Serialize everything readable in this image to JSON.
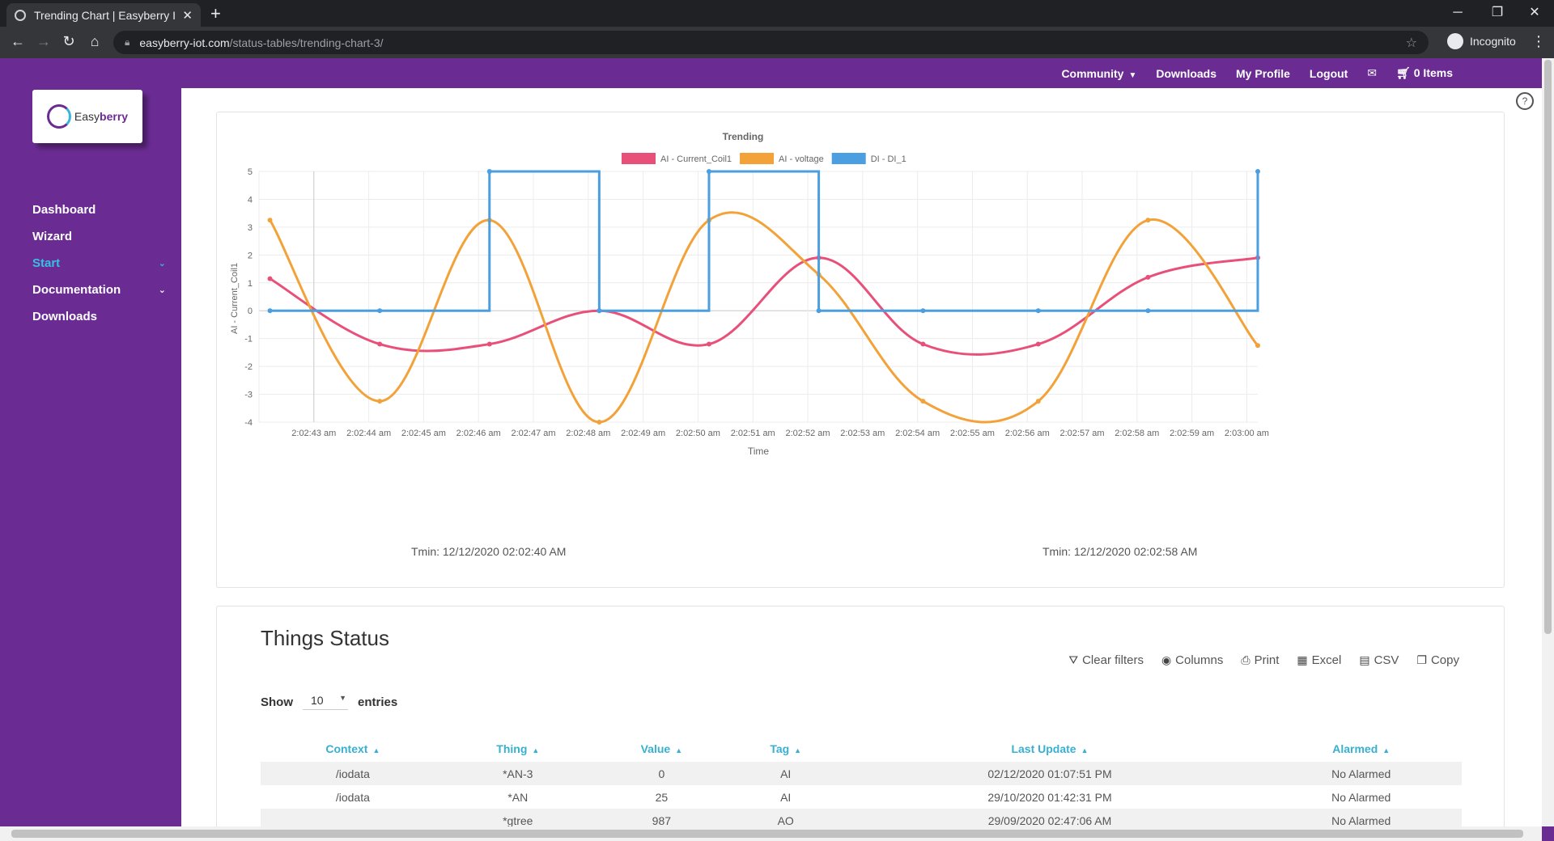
{
  "browser": {
    "tab_title": "Trending Chart | Easyberry IoT",
    "url_host": "easyberry-iot.com",
    "url_path": "/status-tables/trending-chart-3/",
    "profile": "Incognito"
  },
  "topnav": {
    "community": "Community",
    "downloads": "Downloads",
    "my_profile": "My Profile",
    "logout": "Logout",
    "cart": "0 Items"
  },
  "logo": {
    "part1": "Easy",
    "part2": "berry"
  },
  "sidebar": {
    "items": [
      {
        "label": "Dashboard"
      },
      {
        "label": "Wizard"
      },
      {
        "label": "Start"
      },
      {
        "label": "Documentation"
      },
      {
        "label": "Downloads"
      }
    ]
  },
  "chart_data": {
    "type": "line",
    "title": "Trending",
    "xlabel": "Time",
    "ylabel": "AI - Current_Coil1",
    "ylim": [
      -4,
      5
    ],
    "yticks": [
      5,
      4,
      3,
      2,
      1,
      0,
      -1,
      -2,
      -3,
      -4
    ],
    "x_tick_labels": [
      "2:02:43 am",
      "2:02:44 am",
      "2:02:45 am",
      "2:02:46 am",
      "2:02:47 am",
      "2:02:48 am",
      "2:02:49 am",
      "2:02:50 am",
      "2:02:51 am",
      "2:02:52 am",
      "2:02:53 am",
      "2:02:54 am",
      "2:02:55 am",
      "2:02:56 am",
      "2:02:57 am",
      "2:02:58 am",
      "2:02:59 am",
      "2:03:00 am"
    ],
    "grid": true,
    "legend_position": "top-center",
    "series": [
      {
        "name": "AI - Current_Coil1",
        "color": "#e8507a",
        "smooth": true,
        "x": [
          42.2,
          44.2,
          46.2,
          48.2,
          50.2,
          52.2,
          54.1,
          56.2,
          58.2,
          60.2
        ],
        "y": [
          1.15,
          -1.2,
          -1.2,
          0.0,
          -1.2,
          1.9,
          -1.2,
          -1.2,
          1.2,
          1.9
        ]
      },
      {
        "name": "AI - voltage",
        "color": "#f2a238",
        "smooth": true,
        "x": [
          42.2,
          44.2,
          46.2,
          48.2,
          50.2,
          52.2,
          54.1,
          56.2,
          58.2,
          60.2
        ],
        "y": [
          3.25,
          -3.25,
          3.25,
          -4.0,
          3.25,
          1.3,
          -3.25,
          -3.25,
          3.25,
          -1.25
        ]
      },
      {
        "name": "DI - DI_1",
        "color": "#4b9fe0",
        "step": true,
        "x": [
          42.2,
          44.2,
          46.2,
          48.2,
          50.2,
          52.2,
          54.1,
          56.2,
          58.2,
          60.2
        ],
        "y": [
          0,
          0,
          5,
          0,
          5,
          0,
          0,
          0,
          0,
          5
        ]
      }
    ]
  },
  "tmin_labels": {
    "left": "Tmin: 12/12/2020 02:02:40 AM",
    "right": "Tmin: 12/12/2020 02:02:58 AM"
  },
  "status": {
    "title": "Things Status",
    "tools": {
      "clear_filters": "Clear filters",
      "columns": "Columns",
      "print": "Print",
      "excel": "Excel",
      "csv": "CSV",
      "copy": "Copy"
    },
    "show_label": "Show",
    "show_value": "10",
    "entries_label": "entries",
    "columns": [
      "Context",
      "Thing",
      "Value",
      "Tag",
      "Last Update",
      "Alarmed"
    ],
    "rows": [
      [
        "/iodata",
        "*AN-3",
        "0",
        "AI",
        "02/12/2020 01:07:51 PM",
        "No Alarmed"
      ],
      [
        "/iodata",
        "*AN",
        "25",
        "AI",
        "29/10/2020 01:42:31 PM",
        "No Alarmed"
      ],
      [
        "",
        "*gtree",
        "987",
        "AO",
        "29/09/2020 02:47:06 AM",
        "No Alarmed"
      ]
    ]
  }
}
